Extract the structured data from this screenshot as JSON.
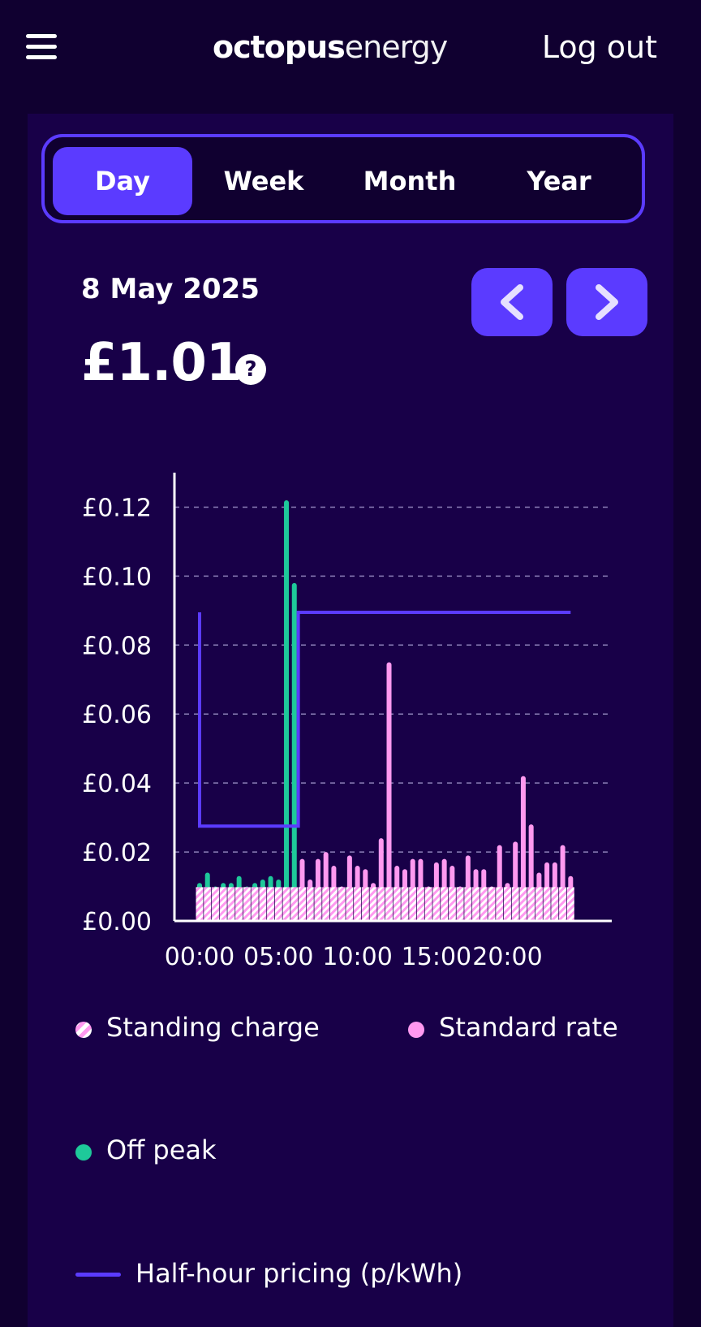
{
  "header": {
    "logo_bold": "octopus",
    "logo_light": "energy",
    "logout_label": "Log out"
  },
  "tabs": [
    {
      "label": "Day",
      "active": true
    },
    {
      "label": "Week",
      "active": false
    },
    {
      "label": "Month",
      "active": false
    },
    {
      "label": "Year",
      "active": false
    }
  ],
  "summary": {
    "date": "8 May 2025",
    "total": "£1.01",
    "help_icon": "question-circle-icon"
  },
  "nav": {
    "prev_icon": "chevron-left-icon",
    "next_icon": "chevron-right-icon"
  },
  "colors": {
    "background": "#100030",
    "card": "#180048",
    "accent": "#5b3bff",
    "off_peak": "#1ec99a",
    "standard_rate": "#ff99f0",
    "standing_charge": "#ffffff"
  },
  "chart_data": {
    "type": "bar",
    "ylim": [
      0,
      0.13
    ],
    "yticks": [
      "£0.00",
      "£0.02",
      "£0.04",
      "£0.06",
      "£0.08",
      "£0.10",
      "£0.12"
    ],
    "ytick_values": [
      0,
      0.02,
      0.04,
      0.06,
      0.08,
      0.1,
      0.12
    ],
    "xticks": [
      "00:00",
      "05:00",
      "10:00",
      "15:00",
      "20:00"
    ],
    "xtick_slots": [
      0,
      10,
      20,
      30,
      39
    ],
    "grid": true,
    "slots": 48,
    "standing_charge_per_slot": 0.0098,
    "series": [
      {
        "name": "Off peak",
        "start_slot": 0,
        "values": [
          0.011,
          0.014,
          0.01,
          0.011,
          0.011,
          0.013,
          0.01,
          0.011,
          0.012,
          0.013,
          0.012,
          0.122,
          0.098
        ]
      },
      {
        "name": "Standard rate",
        "start_slot": 13,
        "values": [
          0.018,
          0.012,
          0.018,
          0.02,
          0.016,
          0.01,
          0.019,
          0.016,
          0.015,
          0.011,
          0.024,
          0.075,
          0.016,
          0.015,
          0.018,
          0.018,
          0.01,
          0.017,
          0.018,
          0.016,
          0.01,
          0.019,
          0.015,
          0.015,
          0.01,
          0.022,
          0.011,
          0.023,
          0.042,
          0.028,
          0.014,
          0.017,
          0.017,
          0.022,
          0.013
        ]
      }
    ],
    "pricing_line": {
      "name": "Half-hour pricing (p/kWh)",
      "steps": [
        {
          "from_slot": 0,
          "to_slot": 12.5,
          "value": 0.0275
        },
        {
          "from_slot": 12.5,
          "to_slot": 47,
          "value": 0.0895
        }
      ]
    },
    "legend": [
      {
        "label": "Standing charge",
        "icon": "striped-dot-icon"
      },
      {
        "label": "Standard rate",
        "icon": "pink-dot-icon"
      },
      {
        "label": "Off peak",
        "icon": "green-dot-icon"
      },
      {
        "label": "Half-hour pricing (p/kWh)",
        "icon": "line-icon"
      }
    ]
  }
}
